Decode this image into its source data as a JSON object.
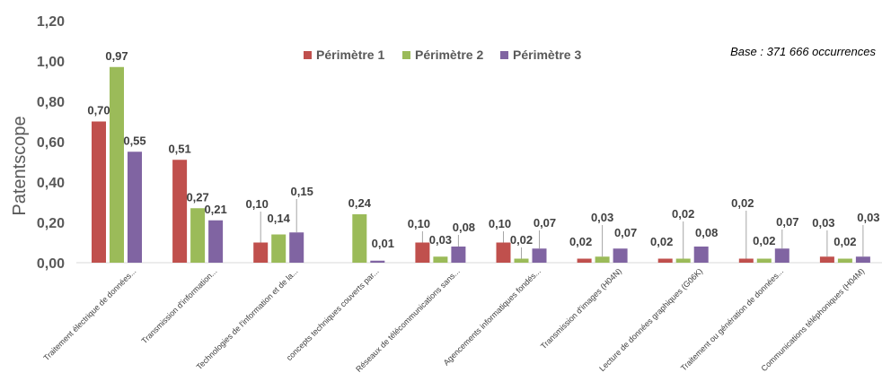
{
  "chart_data": {
    "type": "bar",
    "ylabel": "Patentscope",
    "xlabel": "",
    "ylim": [
      0,
      1.2
    ],
    "y_ticks": [
      "0,00",
      "0,20",
      "0,40",
      "0,60",
      "0,80",
      "1,00",
      "1,20"
    ],
    "categories": [
      "Traitement électrique de données...",
      "Transmission d'information...",
      "Technologies de l'information et de la...",
      "concepts techniques couverts par...",
      "Réseaux de télécommunications sans...",
      "Agencements informatiques fondés...",
      "Transmission d'images (H04N)",
      "Lecture de données graphiques (G06K)",
      "Traitement ou génération de données...",
      "Communications téléphoniques (H04M)"
    ],
    "series": [
      {
        "name": "Périmètre 1",
        "color": "#c0504d",
        "values": [
          0.7,
          0.51,
          0.1,
          0.0,
          0.1,
          0.1,
          0.02,
          0.02,
          0.02,
          0.03
        ],
        "labels": [
          "0,70",
          "0,51",
          "0,10",
          "",
          "0,10",
          "0,10",
          "0,02",
          "0,02",
          "0,02",
          "0,03"
        ]
      },
      {
        "name": "Périmètre 2",
        "color": "#9bbb59",
        "values": [
          0.97,
          0.27,
          0.14,
          0.24,
          0.03,
          0.02,
          0.03,
          0.02,
          0.02,
          0.02
        ],
        "labels": [
          "0,97",
          "0,27",
          "0,14",
          "0,24",
          "0,03",
          "0,02",
          "0,03",
          "0,02",
          "0,02",
          "0,02"
        ]
      },
      {
        "name": "Périmètre 3",
        "color": "#8064a2",
        "values": [
          0.55,
          0.21,
          0.15,
          0.01,
          0.08,
          0.07,
          0.07,
          0.08,
          0.07,
          0.03
        ],
        "labels": [
          "0,55",
          "0,21",
          "0,15",
          "0,01",
          "0,08",
          "0,07",
          "0,07",
          "0,08",
          "0,07",
          "0,03"
        ]
      }
    ],
    "grid": false,
    "legend_position": "top-center",
    "annotation": "Base : 371 666 occurrences"
  }
}
